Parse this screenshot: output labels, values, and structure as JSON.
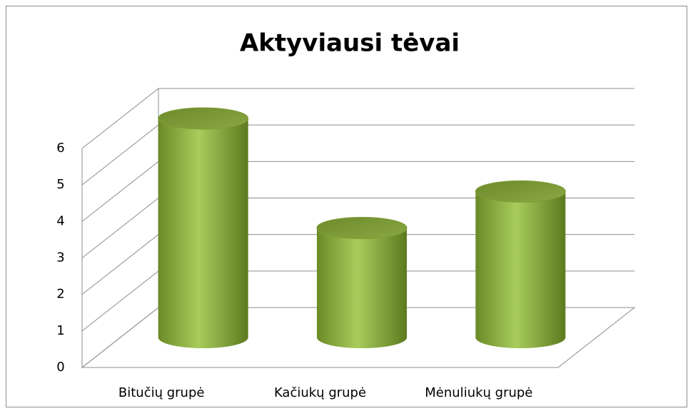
{
  "chart_data": {
    "type": "cylinder3d",
    "title": "Aktyviausi tėvai",
    "categories": [
      "Bitučių grupė",
      "Kačiukų grupė",
      "Mėnuliukų grupė"
    ],
    "values": [
      6,
      3,
      4
    ],
    "color": "#8fb040",
    "ylim": [
      0,
      6
    ],
    "yticks": [
      0,
      1,
      2,
      3,
      4,
      5,
      6
    ],
    "grid": true
  }
}
